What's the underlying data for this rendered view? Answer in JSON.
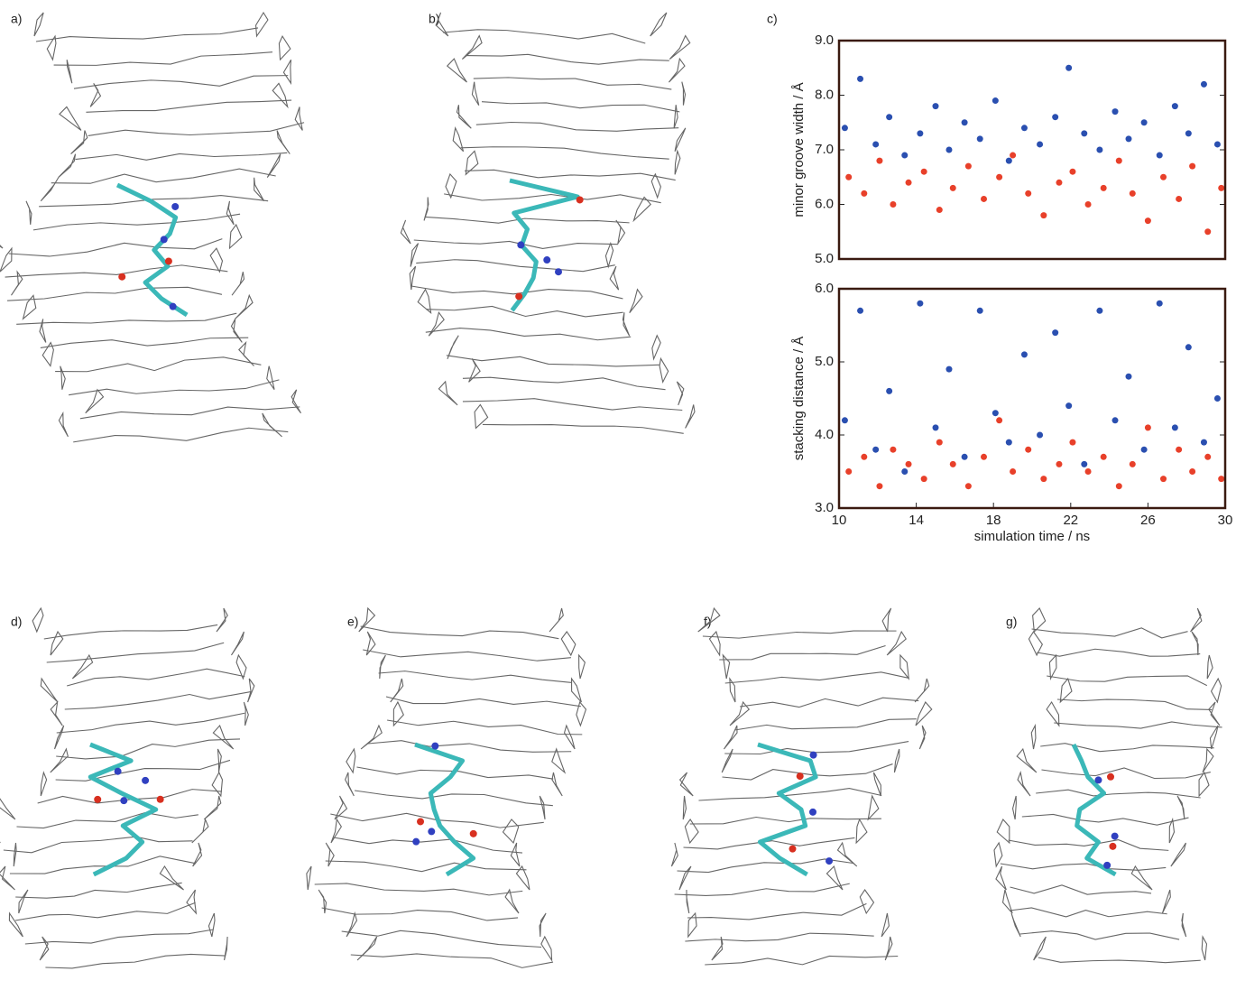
{
  "panels": [
    "a)",
    "b)",
    "c)",
    "d)",
    "e)",
    "f)",
    "g)"
  ],
  "chart_data": [
    {
      "type": "scatter",
      "ylabel": "minor groove width / Å",
      "xlim": [
        10,
        30
      ],
      "ylim": [
        5,
        9
      ],
      "yticks": [
        {
          "value": 5,
          "label": "5.0"
        },
        {
          "value": 6,
          "label": "6.0"
        },
        {
          "value": 7,
          "label": "7.0"
        },
        {
          "value": 8,
          "label": "8.0"
        },
        {
          "value": 9,
          "label": "9.0"
        }
      ],
      "series": [
        {
          "color": "#2a4fb0",
          "x": [
            10.3,
            11.1,
            11.9,
            12.6,
            13.4,
            14.2,
            15.0,
            15.7,
            16.5,
            17.3,
            18.1,
            18.8,
            19.6,
            20.4,
            21.2,
            21.9,
            22.7,
            23.5,
            24.3,
            25.0,
            25.8,
            26.6,
            27.4,
            28.1,
            28.9,
            29.6
          ],
          "values": [
            7.4,
            8.3,
            7.1,
            7.6,
            6.9,
            7.3,
            7.8,
            7.0,
            7.5,
            7.2,
            7.9,
            6.8,
            7.4,
            7.1,
            7.6,
            8.5,
            7.3,
            7.0,
            7.7,
            7.2,
            7.5,
            6.9,
            7.8,
            7.3,
            8.2,
            7.1
          ]
        },
        {
          "color": "#e8402a",
          "x": [
            10.5,
            11.3,
            12.1,
            12.8,
            13.6,
            14.4,
            15.2,
            15.9,
            16.7,
            17.5,
            18.3,
            19.0,
            19.8,
            20.6,
            21.4,
            22.1,
            22.9,
            23.7,
            24.5,
            25.2,
            26.0,
            26.8,
            27.6,
            28.3,
            29.1,
            29.8
          ],
          "values": [
            6.5,
            6.2,
            6.8,
            6.0,
            6.4,
            6.6,
            5.9,
            6.3,
            6.7,
            6.1,
            6.5,
            6.9,
            6.2,
            5.8,
            6.4,
            6.6,
            6.0,
            6.3,
            6.8,
            6.2,
            5.7,
            6.5,
            6.1,
            6.7,
            5.5,
            6.3
          ]
        }
      ]
    },
    {
      "type": "scatter",
      "ylabel": "stacking distance / Å",
      "xlabel": "simulation time / ns",
      "xlim": [
        10,
        30
      ],
      "ylim": [
        3,
        6
      ],
      "xticks": [
        10,
        14,
        18,
        22,
        26,
        30
      ],
      "yticks": [
        {
          "value": 3,
          "label": "3.0"
        },
        {
          "value": 4,
          "label": "4.0"
        },
        {
          "value": 5,
          "label": "5.0"
        },
        {
          "value": 6,
          "label": "6.0"
        }
      ],
      "series": [
        {
          "color": "#2a4fb0",
          "x": [
            10.3,
            11.1,
            11.9,
            12.6,
            13.4,
            14.2,
            15.0,
            15.7,
            16.5,
            17.3,
            18.1,
            18.8,
            19.6,
            20.4,
            21.2,
            21.9,
            22.7,
            23.5,
            24.3,
            25.0,
            25.8,
            26.6,
            27.4,
            28.1,
            28.9,
            29.6
          ],
          "values": [
            4.2,
            5.7,
            3.8,
            4.6,
            3.5,
            5.8,
            4.1,
            4.9,
            3.7,
            5.7,
            4.3,
            3.9,
            5.1,
            4.0,
            5.4,
            4.4,
            3.6,
            5.7,
            4.2,
            4.8,
            3.8,
            5.8,
            4.1,
            5.2,
            3.9,
            4.5
          ]
        },
        {
          "color": "#e8402a",
          "x": [
            10.5,
            11.3,
            12.1,
            12.8,
            13.6,
            14.4,
            15.2,
            15.9,
            16.7,
            17.5,
            18.3,
            19.0,
            19.8,
            20.6,
            21.4,
            22.1,
            22.9,
            23.7,
            24.5,
            25.2,
            26.0,
            26.8,
            27.6,
            28.3,
            29.1,
            29.8
          ],
          "values": [
            3.5,
            3.7,
            3.3,
            3.8,
            3.6,
            3.4,
            3.9,
            3.6,
            3.3,
            3.7,
            4.2,
            3.5,
            3.8,
            3.4,
            3.6,
            3.9,
            3.5,
            3.7,
            3.3,
            3.6,
            4.1,
            3.4,
            3.8,
            3.5,
            3.7,
            3.4
          ]
        }
      ]
    }
  ]
}
